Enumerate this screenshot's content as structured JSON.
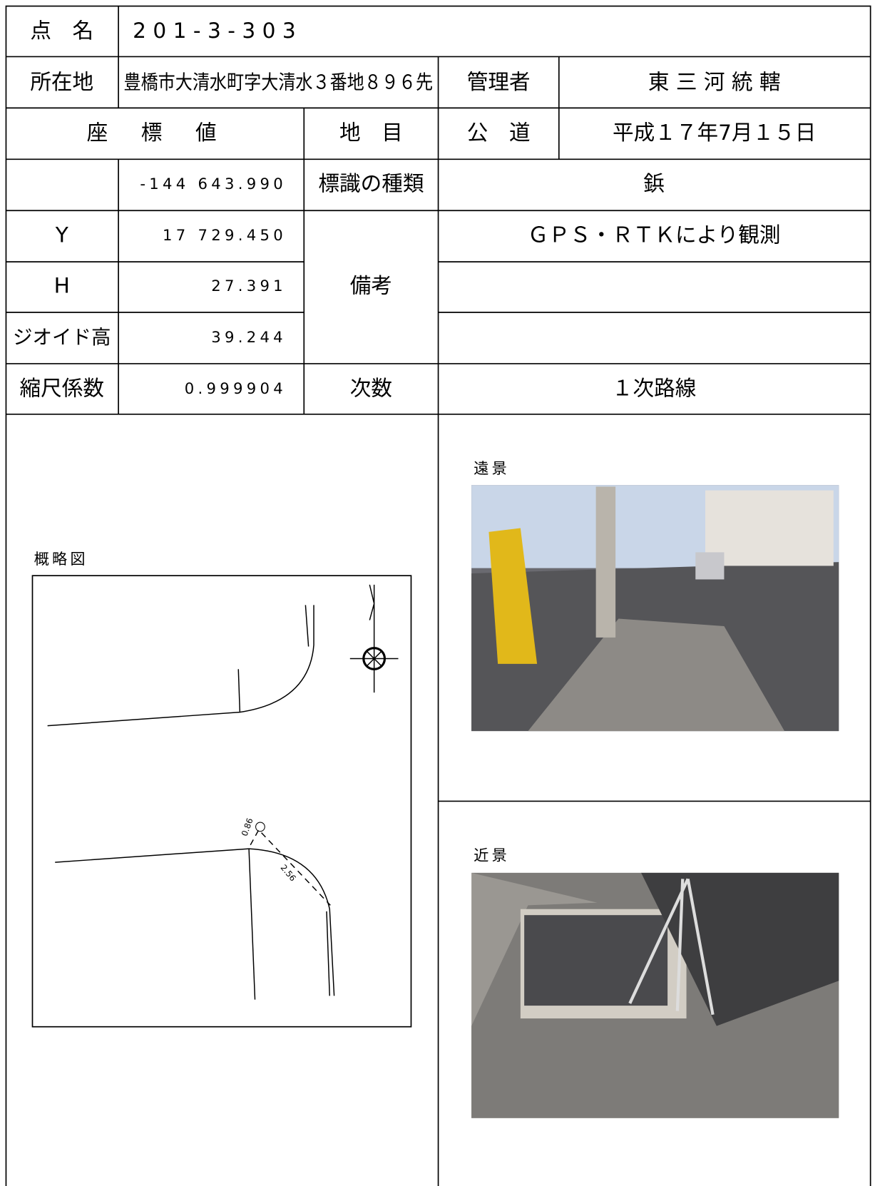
{
  "header": {
    "point_name_label": "点　名",
    "point_name": "2 0 1 - 3 - 3 0 3"
  },
  "table": {
    "rows": [
      [
        "所在地",
        "豊橋市大清水町字大清水３番地８９６先",
        "管理者",
        "東 三 河 統 轄"
      ],
      [
        "座　標　値",
        "地　目",
        "公　道",
        "平成１７年7月１５日"
      ],
      [
        "-144 643.990",
        "標識の種類",
        "鋲"
      ],
      [
        "Y",
        "17 729.450",
        "備考",
        "ＧＰＳ・ＲＴＫにより観測"
      ],
      [
        "H",
        "27.391"
      ],
      [
        "ジオイド高",
        "39.244"
      ],
      [
        "縮尺係数",
        "0.999904",
        "次数",
        "１次路線"
      ]
    ]
  },
  "sketch": {
    "title": "概略図",
    "dims": [
      "0.86",
      "2.56"
    ]
  },
  "photos": {
    "far": "遠景",
    "near": "近景"
  }
}
